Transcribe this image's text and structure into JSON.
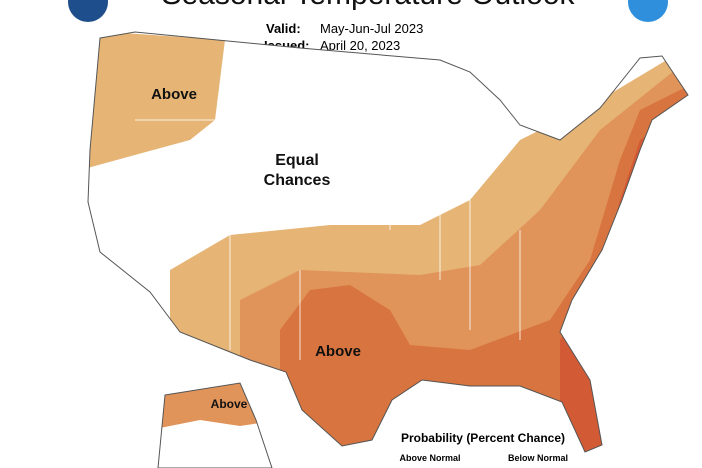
{
  "header": {
    "title": "Seasonal Temperature Outlook",
    "valid_label": "Valid:",
    "valid_value": "May-Jun-Jul 2023",
    "issued_label": "Issued:",
    "issued_value": "April 20, 2023"
  },
  "map": {
    "regions": [
      {
        "lines": [
          "Above"
        ]
      },
      {
        "lines": [
          "Equal",
          "Chances"
        ]
      },
      {
        "lines": [
          "Above"
        ]
      },
      {
        "lines": [
          "Above"
        ]
      }
    ]
  },
  "legend": {
    "title": "Probability (Percent Chance)",
    "items": [
      "Above Normal",
      "Below Normal"
    ]
  }
}
